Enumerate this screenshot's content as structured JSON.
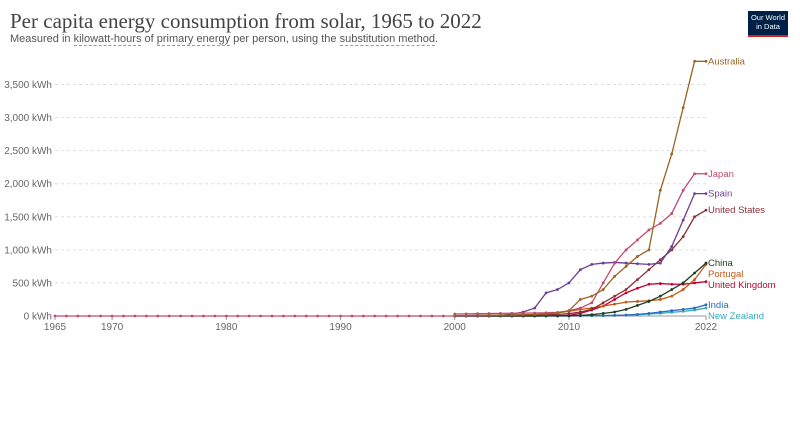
{
  "header": {
    "title": "Per capita energy consumption from solar, 1965 to 2022",
    "subtitle_parts": [
      "Measured in ",
      "kilowatt-hours",
      " of ",
      "primary energy",
      " per person, using the ",
      "substitution method",
      "."
    ],
    "logo_line1": "Our World",
    "logo_line2": "in Data"
  },
  "chart_data": {
    "type": "line",
    "xlim": [
      1965,
      2022
    ],
    "ylim": [
      0,
      3900
    ],
    "x_ticks": [
      1965,
      1970,
      1980,
      1990,
      2000,
      2010,
      2022
    ],
    "y_ticks": [
      0,
      500,
      1000,
      1500,
      2000,
      2500,
      3000,
      3500
    ],
    "y_tick_labels": [
      "0 kWh",
      "500 kWh",
      "1,000 kWh",
      "1,500 kWh",
      "2,000 kWh",
      "2,500 kWh",
      "3,000 kWh",
      "3,500 kWh"
    ],
    "grid": "horizontal dashed",
    "years": [
      2000,
      2001,
      2002,
      2003,
      2004,
      2005,
      2006,
      2007,
      2008,
      2009,
      2010,
      2011,
      2012,
      2013,
      2014,
      2015,
      2016,
      2017,
      2018,
      2019,
      2020,
      2021,
      2022
    ],
    "series": [
      {
        "name": "Australia",
        "color": "#9a6324",
        "values": [
          5,
          8,
          10,
          12,
          14,
          16,
          20,
          25,
          30,
          45,
          80,
          250,
          300,
          400,
          600,
          750,
          900,
          1000,
          1900,
          2450,
          3150,
          3850,
          3850
        ]
      },
      {
        "name": "Japan",
        "color": "#c44a6b",
        "values": [
          30,
          32,
          35,
          38,
          40,
          42,
          44,
          45,
          48,
          55,
          80,
          120,
          200,
          500,
          800,
          1000,
          1150,
          1300,
          1400,
          1550,
          1900,
          2150,
          2150
        ]
      },
      {
        "name": "Spain",
        "color": "#6d3e91",
        "values": [
          2,
          3,
          5,
          8,
          10,
          30,
          60,
          120,
          350,
          400,
          500,
          700,
          780,
          800,
          810,
          800,
          790,
          780,
          800,
          1050,
          1450,
          1850,
          1850
        ]
      },
      {
        "name": "United States",
        "color": "#883039",
        "values": [
          5,
          6,
          7,
          8,
          10,
          12,
          15,
          18,
          20,
          25,
          35,
          60,
          100,
          200,
          300,
          400,
          550,
          700,
          850,
          1000,
          1200,
          1500,
          1600
        ]
      },
      {
        "name": "China",
        "color": "#1d3d1d",
        "values": [
          0,
          0,
          0,
          0,
          0,
          0,
          0,
          1,
          2,
          3,
          5,
          10,
          20,
          40,
          60,
          100,
          160,
          220,
          300,
          400,
          500,
          650,
          800
        ]
      },
      {
        "name": "Portugal",
        "color": "#c05917",
        "values": [
          0,
          0,
          0,
          1,
          2,
          3,
          5,
          10,
          30,
          50,
          70,
          100,
          120,
          150,
          180,
          210,
          220,
          230,
          250,
          300,
          400,
          550,
          780
        ]
      },
      {
        "name": "United Kingdom",
        "color": "#c3002f",
        "values": [
          0,
          0,
          0,
          0,
          0,
          0,
          0,
          1,
          2,
          3,
          10,
          40,
          90,
          150,
          250,
          350,
          420,
          480,
          490,
          480,
          480,
          500,
          520
        ]
      },
      {
        "name": "India",
        "color": "#286bbb",
        "values": [
          0,
          0,
          0,
          0,
          0,
          0,
          0,
          0,
          0,
          0,
          0,
          2,
          4,
          6,
          10,
          15,
          25,
          40,
          60,
          80,
          100,
          120,
          170
        ]
      },
      {
        "name": "New Zealand",
        "color": "#38aaba",
        "values": [
          0,
          0,
          0,
          0,
          0,
          0,
          0,
          0,
          0,
          1,
          2,
          3,
          4,
          5,
          8,
          12,
          20,
          30,
          40,
          55,
          70,
          90,
          120
        ]
      }
    ],
    "flat_before_2000": true
  }
}
